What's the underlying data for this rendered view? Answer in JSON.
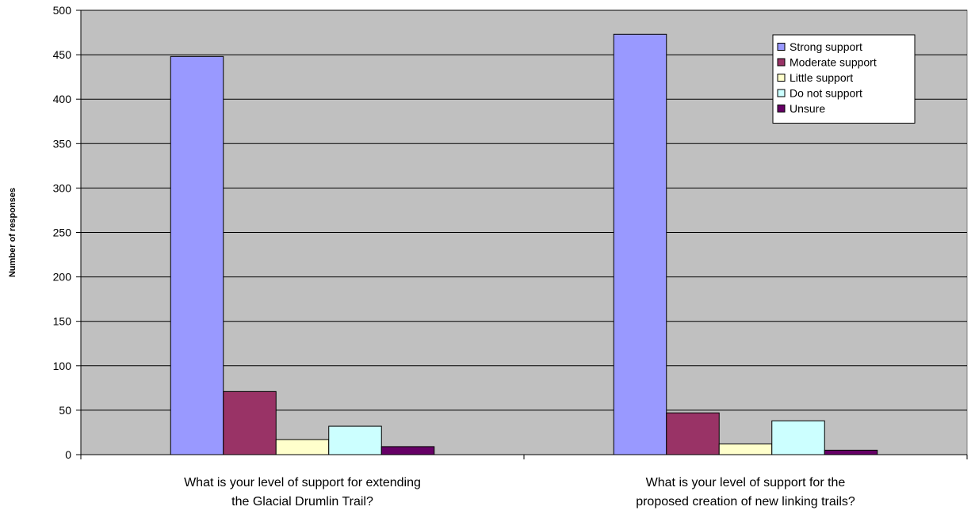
{
  "chart_data": {
    "type": "bar",
    "title": "",
    "xlabel": "",
    "ylabel": "Number of responses",
    "ylim": [
      0,
      500
    ],
    "yticks": [
      0,
      50,
      100,
      150,
      200,
      250,
      300,
      350,
      400,
      450,
      500
    ],
    "grid": true,
    "legend_position": "top-right",
    "categories": [
      [
        "What is your level of support for extending",
        "the Glacial Drumlin Trail?"
      ],
      [
        "What is your level of support for the",
        "proposed creation of new linking trails?"
      ]
    ],
    "series": [
      {
        "name": "Strong support",
        "color": "#9999ff",
        "values": [
          448,
          473
        ]
      },
      {
        "name": "Moderate support",
        "color": "#993366",
        "values": [
          71,
          47
        ]
      },
      {
        "name": "Little support",
        "color": "#ffffcc",
        "values": [
          17,
          12
        ]
      },
      {
        "name": "Do not support",
        "color": "#ccffff",
        "values": [
          32,
          38
        ]
      },
      {
        "name": "Unsure",
        "color": "#660066",
        "values": [
          9,
          5
        ]
      }
    ],
    "plot_background": "#c0c0c0"
  }
}
